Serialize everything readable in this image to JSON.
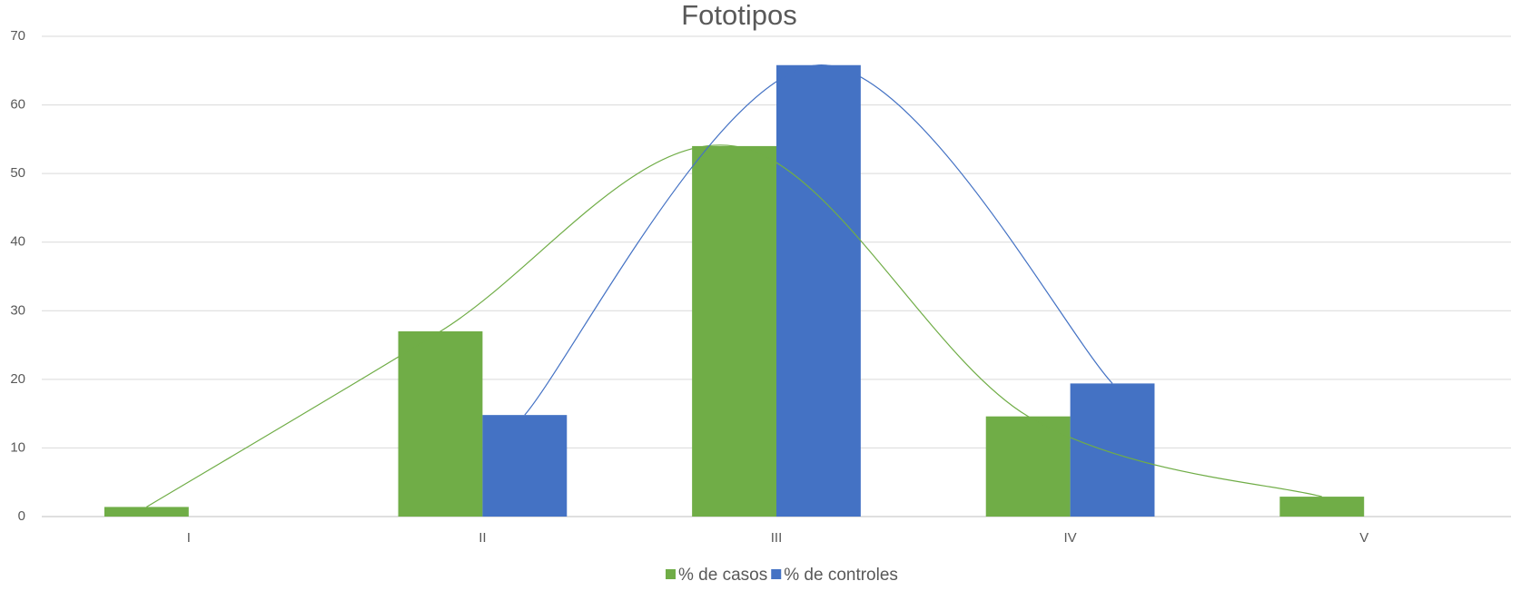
{
  "chart_data": {
    "type": "bar",
    "title": "Fototipos",
    "categories": [
      "I",
      "II",
      "III",
      "IV",
      "V"
    ],
    "series": [
      {
        "name": "% de casos",
        "color": "#70ad47",
        "values": [
          1.4,
          27,
          54,
          14.6,
          2.9
        ]
      },
      {
        "name": "% de controles",
        "color": "#4472c4",
        "values": [
          null,
          14.8,
          65.8,
          19.4,
          null
        ]
      }
    ],
    "ylim": [
      0,
      70
    ],
    "yticks": [
      0,
      10,
      20,
      30,
      40,
      50,
      60,
      70
    ],
    "grid": true,
    "smooth_lines": true,
    "legend": "bottom"
  }
}
